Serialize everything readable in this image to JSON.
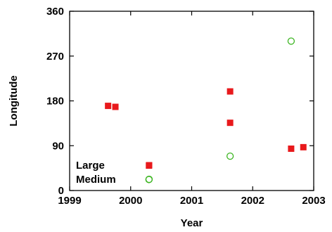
{
  "chart_data": {
    "type": "scatter",
    "title": "",
    "xlabel": "Year",
    "ylabel": "Longitude",
    "xlim": [
      1999,
      2003
    ],
    "ylim": [
      0,
      360
    ],
    "xticks": [
      "1999",
      "2000",
      "2001",
      "2002",
      "2003"
    ],
    "yticks": [
      "0",
      "90",
      "180",
      "270",
      "360"
    ],
    "grid": false,
    "legend_position": "bottom-left",
    "series": [
      {
        "name": "Large",
        "marker": "filled-square",
        "color": "#e8191c",
        "points": [
          {
            "x": 1999.63,
            "y": 170
          },
          {
            "x": 1999.75,
            "y": 168
          },
          {
            "x": 2000.3,
            "y": 50
          },
          {
            "x": 2001.63,
            "y": 199
          },
          {
            "x": 2001.63,
            "y": 136
          },
          {
            "x": 2002.63,
            "y": 84
          },
          {
            "x": 2002.83,
            "y": 87
          }
        ]
      },
      {
        "name": "Medium",
        "marker": "open-circle",
        "color": "#3cb521",
        "points": [
          {
            "x": 2000.3,
            "y": 22
          },
          {
            "x": 2001.63,
            "y": 69
          },
          {
            "x": 2002.63,
            "y": 300
          }
        ]
      }
    ]
  }
}
